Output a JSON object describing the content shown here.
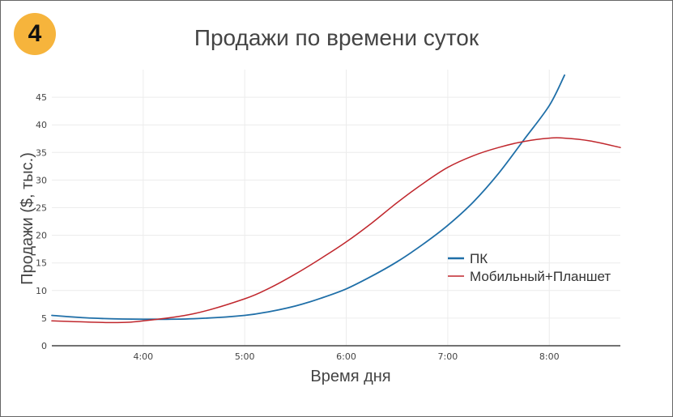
{
  "badge": "4",
  "chart_data": {
    "type": "line",
    "title": "Продажи по времени суток",
    "xlabel": "Время дня",
    "ylabel": "Продажи ($, тыс.)",
    "xlim": [
      3.1,
      8.7
    ],
    "ylim": [
      0,
      50
    ],
    "x_ticks": [
      {
        "v": 4,
        "label": "4:00"
      },
      {
        "v": 5,
        "label": "5:00"
      },
      {
        "v": 6,
        "label": "6:00"
      },
      {
        "v": 7,
        "label": "7:00"
      },
      {
        "v": 8,
        "label": "8:00"
      }
    ],
    "y_ticks": [
      0,
      5,
      10,
      15,
      20,
      25,
      30,
      35,
      40,
      45
    ],
    "grid": true,
    "legend_position": "right",
    "series": [
      {
        "name": "ПК",
        "color": "#1f6fa8",
        "x": [
          3.1,
          3.5,
          4.0,
          4.5,
          5.0,
          5.25,
          5.5,
          5.75,
          6.0,
          6.25,
          6.5,
          6.75,
          7.0,
          7.25,
          7.5,
          7.75,
          8.0,
          8.15
        ],
        "y": [
          5.5,
          5.0,
          4.8,
          4.9,
          5.5,
          6.2,
          7.2,
          8.6,
          10.3,
          12.6,
          15.2,
          18.3,
          21.8,
          26.0,
          31.2,
          37.3,
          43.5,
          49.0
        ]
      },
      {
        "name": "Мобильный+Планшет",
        "color": "#c0272d",
        "x": [
          3.1,
          3.7,
          4.0,
          4.5,
          5.0,
          5.25,
          5.5,
          5.75,
          6.0,
          6.25,
          6.5,
          6.75,
          7.0,
          7.25,
          7.5,
          7.75,
          8.0,
          8.15,
          8.4,
          8.7
        ],
        "y": [
          4.5,
          4.2,
          4.5,
          5.8,
          8.5,
          10.5,
          13.0,
          15.8,
          18.8,
          22.2,
          25.9,
          29.3,
          32.3,
          34.4,
          35.9,
          37.0,
          37.6,
          37.6,
          37.1,
          35.9
        ]
      }
    ]
  }
}
